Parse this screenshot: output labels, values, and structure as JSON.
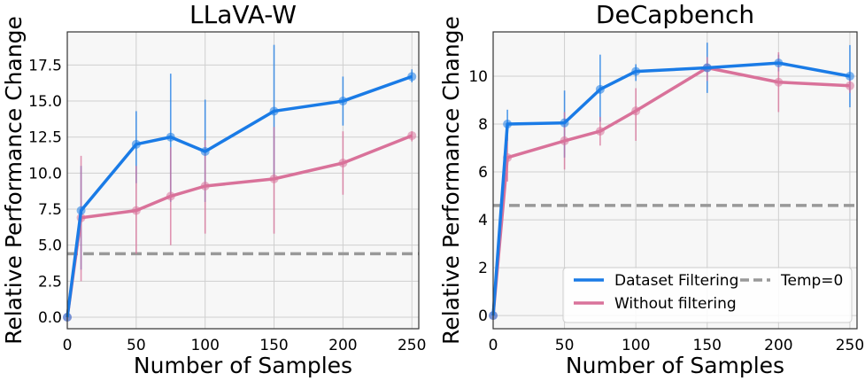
{
  "chart_data": [
    {
      "type": "line",
      "title": "LLaVA-W",
      "xlabel": "Number of Samples",
      "ylabel": "Relative Performance Change",
      "xlim": [
        0,
        255
      ],
      "ylim": [
        -0.8,
        19.8
      ],
      "xticks": [
        0,
        50,
        100,
        150,
        200,
        250
      ],
      "yticks": [
        "0.0",
        "2.5",
        "5.0",
        "7.5",
        "10.0",
        "12.5",
        "15.0",
        "17.5"
      ],
      "grid": true,
      "series": [
        {
          "name": "Dataset Filtering",
          "color": "#1a7be6",
          "x": [
            0,
            10,
            50,
            75,
            100,
            150,
            200,
            250
          ],
          "y": [
            0.0,
            7.4,
            12.0,
            12.5,
            11.5,
            14.3,
            15.0,
            16.7
          ],
          "err_low": [
            0.0,
            3.3,
            9.3,
            8.0,
            8.0,
            9.7,
            13.3,
            16.3
          ],
          "err_high": [
            0.0,
            10.5,
            14.3,
            16.9,
            15.1,
            18.9,
            16.7,
            17.2
          ]
        },
        {
          "name": "Without filtering",
          "color": "#d9729a",
          "x": [
            0,
            10,
            50,
            75,
            100,
            150,
            200,
            250
          ],
          "y": [
            0.0,
            6.9,
            7.4,
            8.4,
            9.1,
            9.6,
            10.7,
            12.6
          ],
          "err_low": [
            0.0,
            2.5,
            4.4,
            5.0,
            5.8,
            5.8,
            8.5,
            12.2
          ],
          "err_high": [
            0.0,
            11.2,
            10.5,
            11.8,
            12.3,
            13.2,
            12.9,
            12.9
          ]
        }
      ],
      "reference_line": {
        "name": "Temp=0",
        "y": 4.4,
        "color": "#999999"
      }
    },
    {
      "type": "line",
      "title": "DeCapbench",
      "xlabel": "Number of Samples",
      "ylabel": "Relative Performance Change",
      "xlim": [
        0,
        255
      ],
      "ylim": [
        -0.55,
        11.85
      ],
      "xticks": [
        0,
        50,
        100,
        150,
        200,
        250
      ],
      "yticks": [
        "0",
        "2",
        "4",
        "6",
        "8",
        "10"
      ],
      "grid": true,
      "series": [
        {
          "name": "Dataset Filtering",
          "color": "#1a7be6",
          "x": [
            0,
            10,
            50,
            75,
            100,
            150,
            200,
            250
          ],
          "y": [
            0.0,
            8.0,
            8.05,
            9.45,
            10.2,
            10.35,
            10.55,
            10.0
          ],
          "err_low": [
            0.0,
            7.3,
            6.6,
            8.1,
            9.8,
            9.3,
            10.2,
            8.7
          ],
          "err_high": [
            0.0,
            8.6,
            9.4,
            10.9,
            10.5,
            11.4,
            10.9,
            11.3
          ]
        },
        {
          "name": "Without filtering",
          "color": "#d9729a",
          "x": [
            0,
            10,
            50,
            75,
            100,
            150,
            200,
            250
          ],
          "y": [
            0.0,
            6.6,
            7.3,
            7.7,
            8.55,
            10.35,
            9.75,
            9.6
          ],
          "err_low": [
            0.0,
            5.6,
            6.1,
            7.1,
            7.3,
            9.8,
            8.5,
            9.3
          ],
          "err_high": [
            0.0,
            7.5,
            8.5,
            8.3,
            9.5,
            10.8,
            11.0,
            9.9
          ]
        }
      ],
      "reference_line": {
        "name": "Temp=0",
        "y": 4.6,
        "color": "#999999"
      },
      "legend": {
        "location": "lower-right",
        "entries": [
          "Dataset Filtering",
          "Temp=0",
          "Without filtering"
        ]
      }
    }
  ]
}
